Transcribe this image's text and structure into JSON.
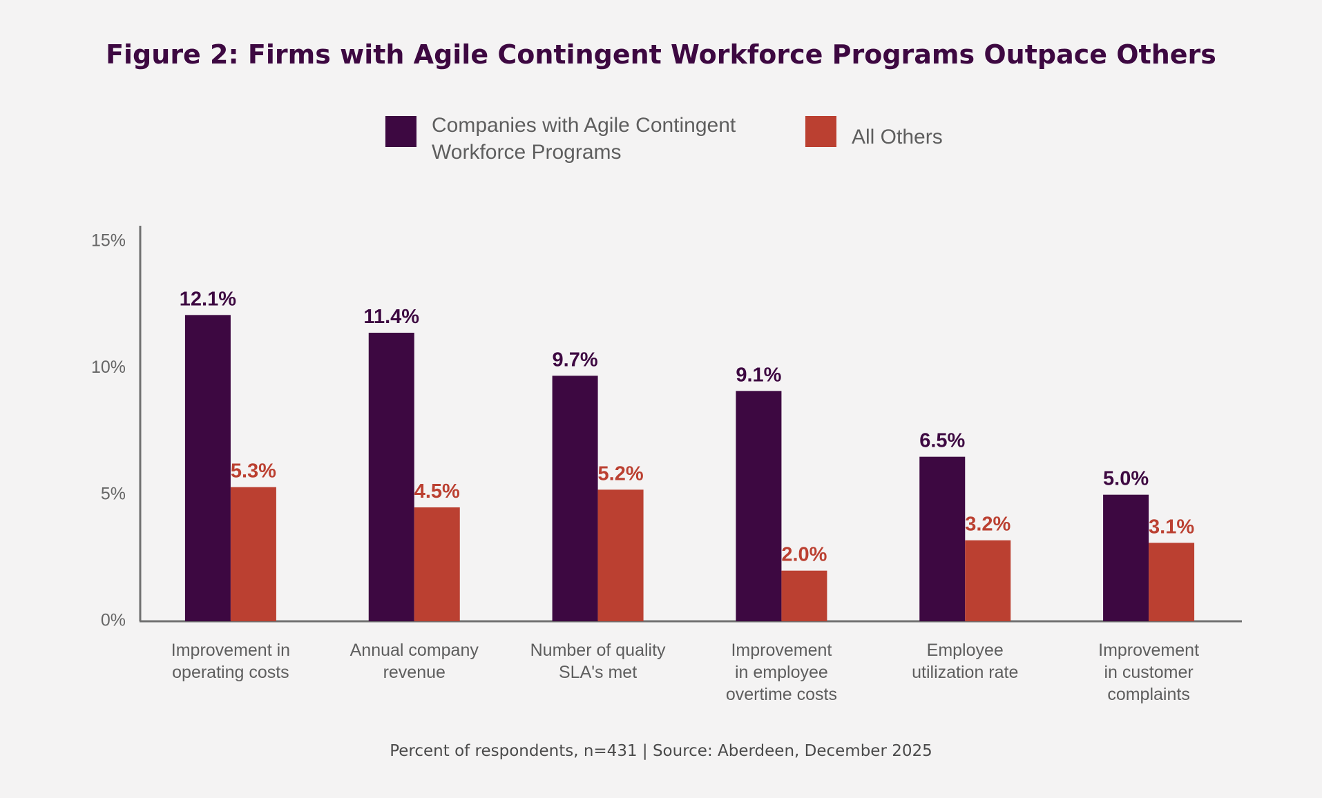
{
  "chart_data": {
    "type": "bar",
    "title": "Figure 2: Firms with Agile Contingent Workforce Programs Outpace Others",
    "categories": [
      [
        "Improvement in",
        "operating costs"
      ],
      [
        "Annual company",
        "revenue"
      ],
      [
        "Number of quality",
        "SLA's met"
      ],
      [
        "Improvement",
        "in employee",
        "overtime costs"
      ],
      [
        "Employee",
        "utilization rate"
      ],
      [
        "Improvement",
        "in customer",
        "complaints"
      ]
    ],
    "series": [
      {
        "name": "Companies with Agile Contingent Workforce Programs",
        "legend_lines": [
          "Companies with Agile Contingent",
          "Workforce Programs"
        ],
        "color": "#3d0841",
        "values": [
          12.1,
          11.4,
          9.7,
          9.1,
          6.5,
          5.0
        ],
        "labels": [
          "12.1%",
          "11.4%",
          "9.7%",
          "9.1%",
          "6.5%",
          "5.0%"
        ]
      },
      {
        "name": "All Others",
        "legend_lines": [
          "All Others"
        ],
        "color": "#bb4031",
        "values": [
          5.3,
          4.5,
          5.2,
          2.0,
          3.2,
          3.1
        ],
        "labels": [
          "5.3%",
          "4.5%",
          "5.2%",
          "2.0%",
          "3.2%",
          "3.1%"
        ]
      }
    ],
    "yticks": [
      0,
      5,
      10,
      15
    ],
    "ytick_labels": [
      "0%",
      "5%",
      "10%",
      "15%"
    ],
    "ylim": [
      0,
      15
    ],
    "grid": false,
    "legend_position": "top-center",
    "footnote": "Percent of respondents, n=431 | Source: Aberdeen, December 2025",
    "colors": {
      "title": "#3d0841",
      "axis": "#707070",
      "tick_text": "#666666",
      "footnote": "#4a4a4a"
    }
  }
}
